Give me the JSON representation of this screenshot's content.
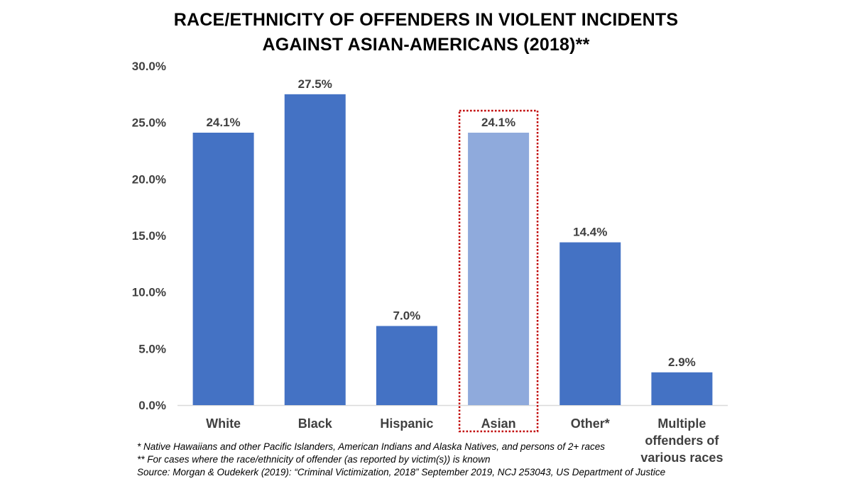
{
  "title": {
    "line1": "RACE/ETHNICITY OF OFFENDERS IN VIOLENT INCIDENTS",
    "line2": "AGAINST ASIAN-AMERICANS (2018)**"
  },
  "chart_data": {
    "type": "bar",
    "categories": [
      "White",
      "Black",
      "Hispanic",
      "Asian",
      "Other*",
      "Multiple offenders of various races"
    ],
    "category_lines": [
      [
        "White"
      ],
      [
        "Black"
      ],
      [
        "Hispanic"
      ],
      [
        "Asian"
      ],
      [
        "Other*"
      ],
      [
        "Multiple",
        "offenders of",
        "various races"
      ]
    ],
    "values": [
      24.1,
      27.5,
      7.0,
      24.1,
      14.4,
      2.9
    ],
    "data_labels": [
      "24.1%",
      "27.5%",
      "7.0%",
      "24.1%",
      "14.4%",
      "2.9%"
    ],
    "ylim": [
      0,
      30
    ],
    "yticks": [
      0,
      5,
      10,
      15,
      20,
      25,
      30
    ],
    "ytick_labels": [
      "0.0%",
      "5.0%",
      "10.0%",
      "15.0%",
      "20.0%",
      "25.0%",
      "30.0%"
    ],
    "xlabel": "",
    "ylabel": "",
    "grid": false,
    "highlight_category": "Asian",
    "colors": {
      "bar": "#4472C4",
      "highlight_bar": "#8FAADC",
      "highlight_box": "#C00000",
      "axis": "#D9D9D9",
      "text": "#404040"
    }
  },
  "footnotes": [
    "* Native Hawaiians and other Pacific Islanders, American Indians and Alaska Natives, and persons of 2+ races",
    "** For cases where the race/ethnicity of offender (as reported by victim(s)) is known",
    "Source: Morgan & Oudekerk (2019): “Criminal Victimization, 2018”  September 2019, NCJ 253043, US Department of Justice"
  ]
}
